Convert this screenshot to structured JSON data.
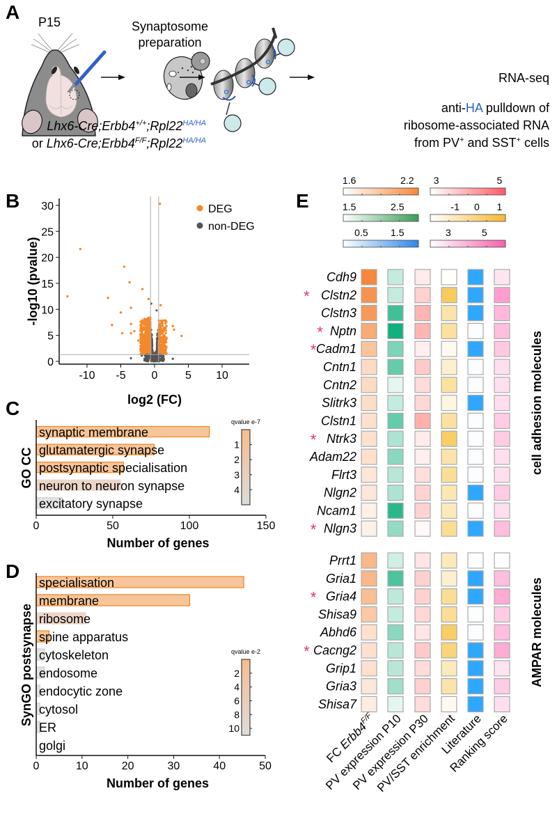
{
  "panelA": {
    "label": "A",
    "age": "P15",
    "step1": [
      "Synaptosome",
      "preparation"
    ],
    "genotype1": {
      "prefix": "",
      "a": "Lhx6-Cre;Erbb4",
      "sup1": "+/+",
      "b": ";Rpl22",
      "sup2": "HA/HA"
    },
    "genotype2": {
      "prefix": "or ",
      "a": "Lhx6-Cre;Erbb4",
      "sup1": "F/F",
      "b": ";Rpl22",
      "sup2": "HA/HA"
    },
    "final": "RNA-seq",
    "pulldown": {
      "pre": "anti-",
      "ha": "HA",
      "post": " pulldown of",
      "line2": "ribosome-associated RNA",
      "line3a": "from PV",
      "sup": "+",
      "line3b": " and SST",
      "line3c": " cells"
    },
    "colors": {
      "ha_blue": "#2b64c8"
    }
  },
  "chart_data": [
    {
      "panel": "B",
      "type": "scatter",
      "title": "",
      "xlabel": "log2 (FC)",
      "ylabel": "-log10 (pvalue)",
      "xlim": [
        -14,
        14
      ],
      "ylim": [
        -1,
        31
      ],
      "xticks": [
        -10,
        -5,
        0,
        5,
        10
      ],
      "yticks": [
        0,
        5,
        10,
        15,
        20,
        25,
        30
      ],
      "thresholds": {
        "log2fc": [
          -0.6,
          0.6
        ],
        "neglog10p": 1.3
      },
      "legend": {
        "position": "top-right",
        "entries": [
          {
            "name": "DEG",
            "color": "#f5882a"
          },
          {
            "name": "non-DEG",
            "color": "#555555"
          }
        ]
      },
      "deg_outliers": [
        [
          -12.9,
          12.5
        ],
        [
          -11,
          21.6
        ],
        [
          -6.9,
          12.2
        ],
        [
          -6.3,
          7
        ],
        [
          -5,
          9.4
        ],
        [
          -4.8,
          5.4
        ],
        [
          -4.5,
          18.2
        ],
        [
          -3.7,
          15.2
        ],
        [
          -3.5,
          10.3
        ],
        [
          -3.5,
          7.2
        ],
        [
          -3.5,
          5.4
        ],
        [
          -3,
          5.8
        ],
        [
          -2.4,
          4
        ],
        [
          -1.8,
          13.9
        ],
        [
          -0.9,
          12
        ],
        [
          0.8,
          30.3
        ],
        [
          0.9,
          10.8
        ],
        [
          2.7,
          6.8
        ],
        [
          2.9,
          6.1
        ],
        [
          4,
          4.9
        ]
      ],
      "nondeg_outliers": [
        [
          -3.5,
          0.6
        ],
        [
          -1.9,
          1.1
        ],
        [
          2.7,
          0.5
        ],
        [
          -0.5,
          11.1
        ],
        [
          0.3,
          9.8
        ]
      ]
    },
    {
      "panel": "C",
      "type": "bar",
      "orientation": "horizontal",
      "ylabel": "GO CC",
      "xlabel": "Number of genes",
      "xlim": [
        0,
        150
      ],
      "xticks": [
        0,
        50,
        100,
        150
      ],
      "categories": [
        "synaptic membrane",
        "glutamatergic synapse",
        "postsynaptic specialisation",
        "neuron to neuron synapse",
        "excitatory synapse"
      ],
      "values": [
        113,
        77,
        57,
        55,
        17
      ],
      "qvalues": [
        0.2,
        0.6,
        1.0,
        3.0,
        4.6
      ],
      "colorbar": {
        "title": "qvalue e-7",
        "ticks": [
          "1",
          "2",
          "3",
          "4"
        ],
        "range": [
          0,
          5
        ]
      }
    },
    {
      "panel": "D",
      "type": "bar",
      "orientation": "horizontal",
      "ylabel": "SynGO postsynapse",
      "xlabel": "Number of genes",
      "xlim": [
        0,
        50
      ],
      "xticks": [
        0,
        10,
        20,
        30,
        40,
        50
      ],
      "categories": [
        "specialisation",
        "membrane",
        "ribosome",
        "spine apparatus",
        "cytoskeleton",
        "endosome",
        "endocytic zone",
        "cytosol",
        "ER",
        "golgi"
      ],
      "values": [
        45.3,
        33.5,
        10.8,
        2.8,
        1.8,
        1.8,
        0.8,
        0.8,
        0.8,
        0
      ],
      "qvalues": [
        0.5,
        0.8,
        5.5,
        3,
        10,
        10,
        10,
        10,
        10,
        10
      ],
      "colorbar": {
        "title": "qvalue e-2",
        "ticks": [
          "2",
          "4",
          "6",
          "8",
          "10"
        ],
        "range": [
          0,
          11
        ]
      }
    },
    {
      "panel": "E",
      "type": "heatmap",
      "value_scale": "normalized intensity 0-1 per column",
      "columns": [
        {
          "label": "FC ",
          "label_it": "Erbb4",
          "sup": "F/F",
          "color": "#f5883a"
        },
        {
          "label": "PV expression P10",
          "color": "#12b07e"
        },
        {
          "label": "PV expression P30",
          "color": "#ff7b73"
        },
        {
          "label": "PV/SST enrichment",
          "color": "#f6c340"
        },
        {
          "label": "Literature",
          "color": "#2ea8ff"
        },
        {
          "label": "Ranking score",
          "color": "#ff7dbd"
        }
      ],
      "colorbars": [
        {
          "ticks": [
            "1.6",
            "2.2"
          ],
          "color": "#f5883a"
        },
        {
          "ticks": [
            "3",
            "5"
          ],
          "color": "#ff5c66"
        },
        {
          "ticks": [
            "1.5",
            "2.5"
          ],
          "color": "#3a9e58"
        },
        {
          "ticks": [
            "-1",
            "0",
            "1"
          ],
          "color": "#f6b830"
        },
        {
          "ticks": [
            "0.5",
            "1.5"
          ],
          "color": "#2f86ea"
        },
        {
          "ticks": [
            "3",
            "5"
          ],
          "color": "#f462ac"
        }
      ],
      "star_color": "#e8307a",
      "groups": [
        {
          "label": "cell adhesion molecules",
          "rows": [
            {
              "gene": "Cdh9",
              "star": false,
              "values": [
                1.0,
                0.25,
                0.15,
                0.0,
                1,
                0.2
              ]
            },
            {
              "gene": "Clstn2",
              "star": true,
              "values": [
                0.9,
                0.25,
                0.35,
                0.85,
                1,
                0.75
              ]
            },
            {
              "gene": "Clstn3",
              "star": false,
              "values": [
                0.85,
                0.8,
                0.55,
                0.45,
                1,
                0.55
              ]
            },
            {
              "gene": "Nptn",
              "star": true,
              "values": [
                0.7,
                1.0,
                0.55,
                0.5,
                0,
                0.5
              ]
            },
            {
              "gene": "Cadm1",
              "star": true,
              "values": [
                0.5,
                0.55,
                0.12,
                0.08,
                1,
                0.42
              ]
            },
            {
              "gene": "Cntn1",
              "star": false,
              "values": [
                0.3,
                0.65,
                0.4,
                0.25,
                0,
                0.25
              ]
            },
            {
              "gene": "Cntn2",
              "star": false,
              "values": [
                0.3,
                0.12,
                0.27,
                0.5,
                0,
                0.25
              ]
            },
            {
              "gene": "Slitrk3",
              "star": false,
              "values": [
                0.28,
                0.25,
                0.3,
                0.15,
                1,
                0.25
              ]
            },
            {
              "gene": "Clstn1",
              "star": false,
              "values": [
                0.25,
                0.65,
                0.6,
                0.5,
                0,
                0.4
              ]
            },
            {
              "gene": "Ntrk3",
              "star": true,
              "values": [
                0.25,
                0.35,
                0.15,
                0.8,
                0,
                0.4
              ]
            },
            {
              "gene": "Adam22",
              "star": false,
              "values": [
                0.25,
                0.5,
                0.12,
                0.45,
                0,
                0.25
              ]
            },
            {
              "gene": "Flrt3",
              "star": false,
              "values": [
                0.2,
                0.3,
                0.25,
                0.55,
                0,
                0.25
              ]
            },
            {
              "gene": "Nlgn2",
              "star": false,
              "values": [
                0.2,
                0.35,
                0.33,
                0.4,
                1,
                0.4
              ]
            },
            {
              "gene": "Ncam1",
              "star": false,
              "values": [
                0.12,
                0.9,
                0.33,
                0.35,
                0,
                0.25
              ]
            },
            {
              "gene": "Nlgn3",
              "star": true,
              "values": [
                0.12,
                0.45,
                0.05,
                0.55,
                1,
                0.5
              ]
            }
          ]
        },
        {
          "label": "AMPAR molecules",
          "rows": [
            {
              "gene": "Prrt1",
              "star": false,
              "values": [
                0.6,
                0.2,
                0.2,
                0.35,
                0,
                0
              ]
            },
            {
              "gene": "Gria1",
              "star": false,
              "values": [
                0.6,
                0.75,
                0.35,
                0.25,
                1,
                0.5
              ]
            },
            {
              "gene": "Gria4",
              "star": true,
              "values": [
                0.55,
                0.28,
                0.35,
                0.55,
                1,
                0.65
              ]
            },
            {
              "gene": "Shisa9",
              "star": false,
              "values": [
                0.45,
                0.25,
                0.3,
                0.55,
                0,
                0.4
              ]
            },
            {
              "gene": "Abhd6",
              "star": false,
              "values": [
                0.25,
                0.5,
                0.2,
                0.8,
                0,
                0.5
              ]
            },
            {
              "gene": "Cacng2",
              "star": true,
              "values": [
                0.25,
                0.3,
                0.4,
                0.7,
                1,
                0.65
              ]
            },
            {
              "gene": "Grip1",
              "star": false,
              "values": [
                0.25,
                0.3,
                0.27,
                0.35,
                1,
                0.2
              ]
            },
            {
              "gene": "Gria3",
              "star": false,
              "values": [
                0.2,
                0.4,
                0.35,
                0.45,
                1,
                0.4
              ]
            },
            {
              "gene": "Shisa7",
              "star": false,
              "values": [
                0.15,
                0.12,
                0.27,
                0.08,
                1,
                0.25
              ]
            }
          ]
        }
      ]
    }
  ],
  "labels": {
    "B": "B",
    "C": "C",
    "D": "D",
    "E": "E",
    "star": "*"
  }
}
